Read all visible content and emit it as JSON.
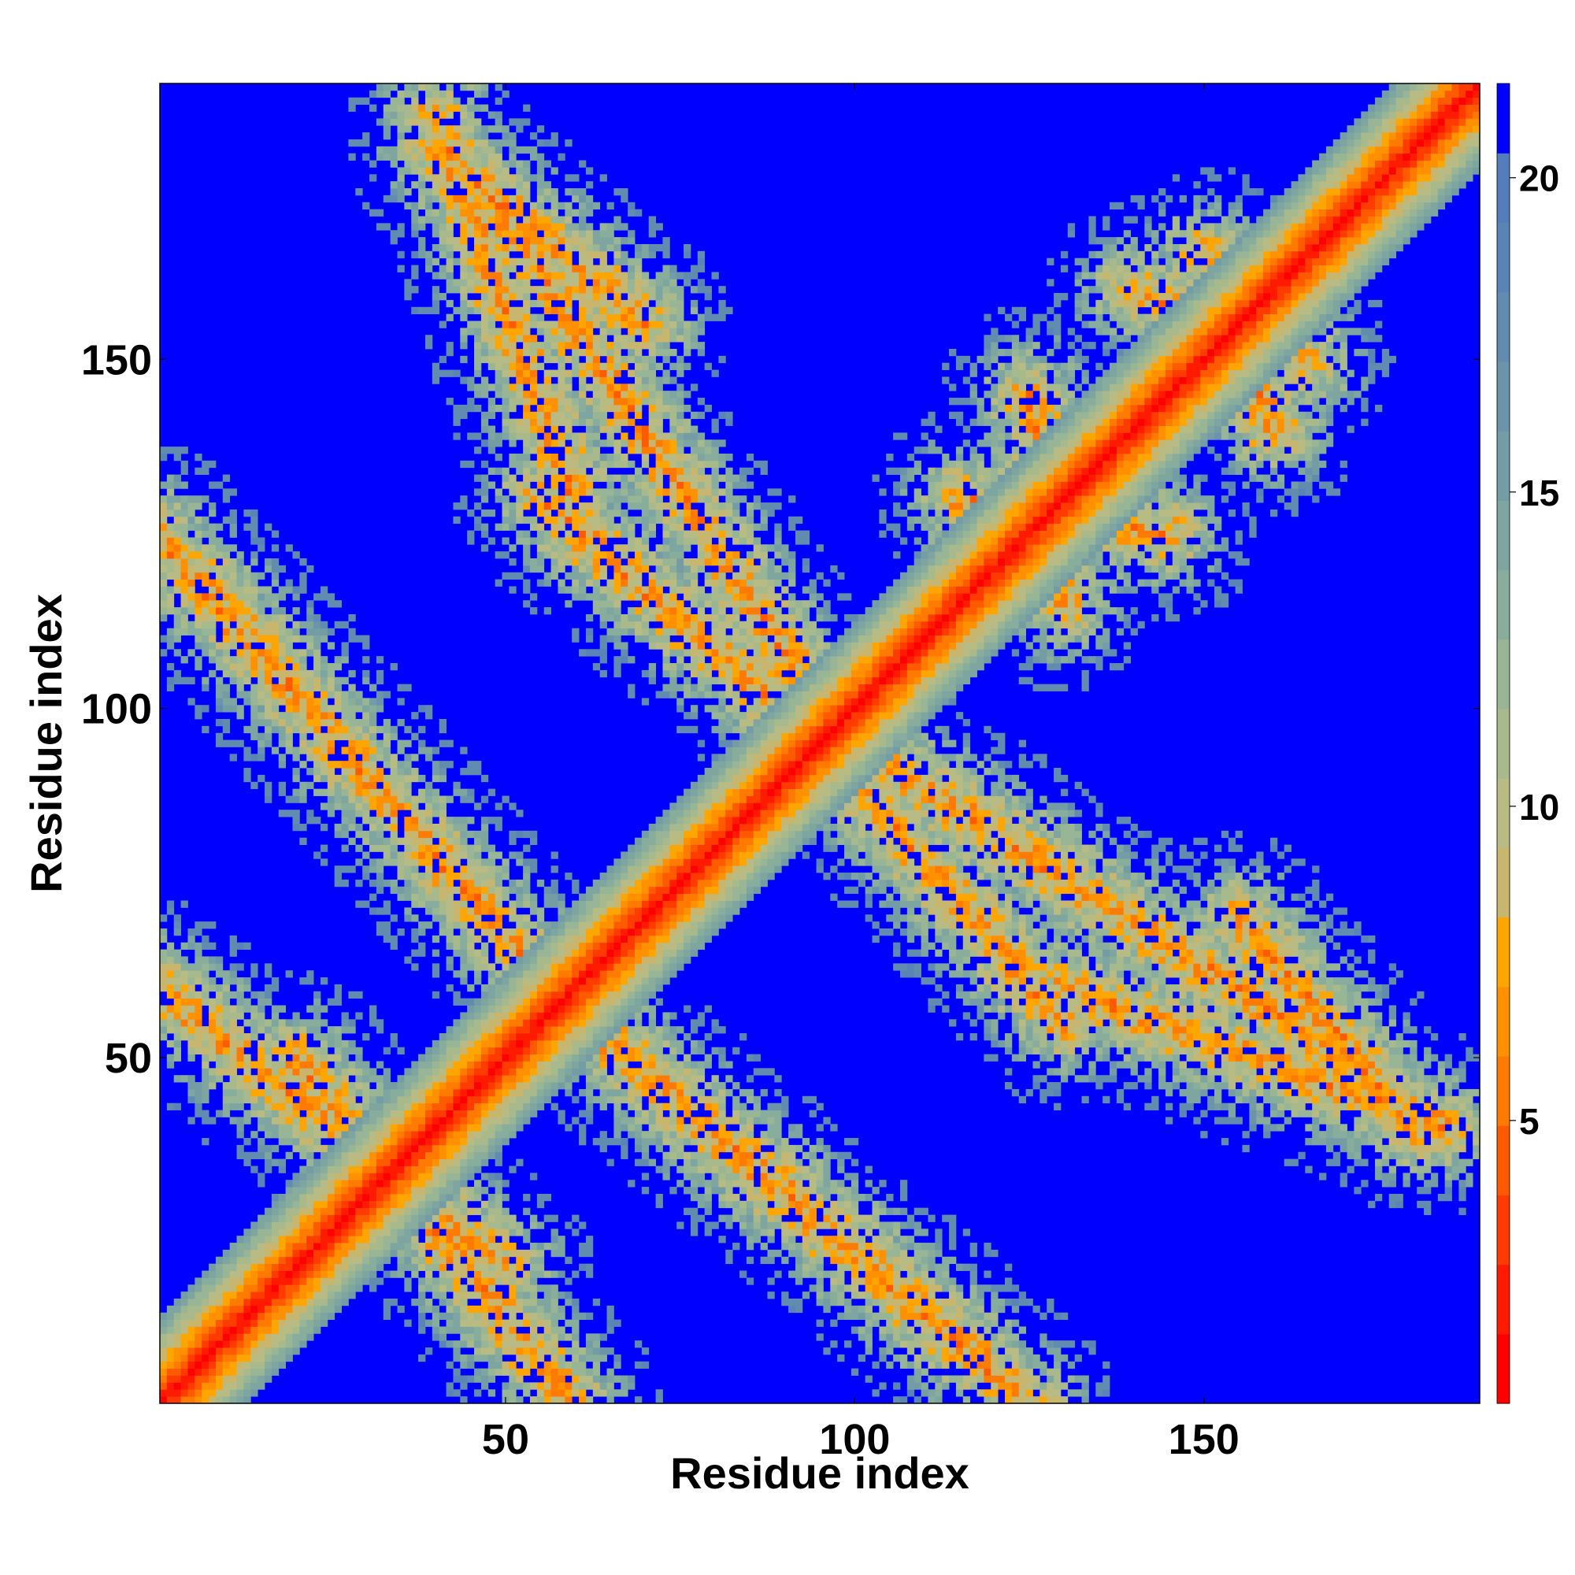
{
  "chart_data": {
    "type": "heatmap",
    "title": "",
    "xlabel": "Residue index",
    "ylabel": "Residue index",
    "xlim": [
      1,
      189
    ],
    "ylim": [
      1,
      189
    ],
    "x_ticks": [
      50,
      100,
      150
    ],
    "y_ticks": [
      50,
      100,
      150
    ],
    "colorbar": {
      "range": [
        0.5,
        21.5
      ],
      "ticks": [
        5,
        10,
        15,
        20
      ],
      "scale": [
        "#ff0000",
        "#ff1a00",
        "#ff3b00",
        "#ff5a00",
        "#ff7a00",
        "#ff9000",
        "#ffa500",
        "#c8b66f",
        "#b8bc84",
        "#a8b98c",
        "#98b595",
        "#88ad9c",
        "#7ea5a0",
        "#749ca5",
        "#6b93aa",
        "#628bb0",
        "#5a84b5",
        "#537ebb",
        "#0000ff"
      ]
    },
    "matrix_description": "Symmetric residue-residue distance map (Å); diagonal band values ~1-3, off-diagonal contact bands ~5-17, background >20",
    "diagonal_band": {
      "center_value": 1.5,
      "halfwidth_residues": 12
    },
    "contact_bands": [
      {
        "from": [
          0,
          60
        ],
        "to": [
          50,
          20
        ],
        "value": 14
      },
      {
        "from": [
          0,
          125
        ],
        "to": [
          56,
          60
        ],
        "value": 13
      },
      {
        "from": [
          56,
          60
        ],
        "to": [
          120,
          5
        ],
        "value": 13
      },
      {
        "from": [
          40,
          180
        ],
        "to": [
          70,
          155
        ],
        "value": 14
      },
      {
        "from": [
          50,
          170
        ],
        "to": [
          95,
          100
        ],
        "value": 13
      },
      {
        "from": [
          95,
          95
        ],
        "to": [
          130,
          55
        ],
        "value": 13
      },
      {
        "from": [
          130,
          60
        ],
        "to": [
          185,
          40
        ],
        "value": 13
      },
      {
        "from": [
          115,
          130
        ],
        "to": [
          145,
          125
        ],
        "value": 14
      },
      {
        "from": [
          140,
          160
        ],
        "to": [
          165,
          150
        ],
        "value": 14
      }
    ],
    "background_value": 21
  },
  "colors": {
    "background_blue": "#0000ff",
    "frame": "#000000"
  }
}
